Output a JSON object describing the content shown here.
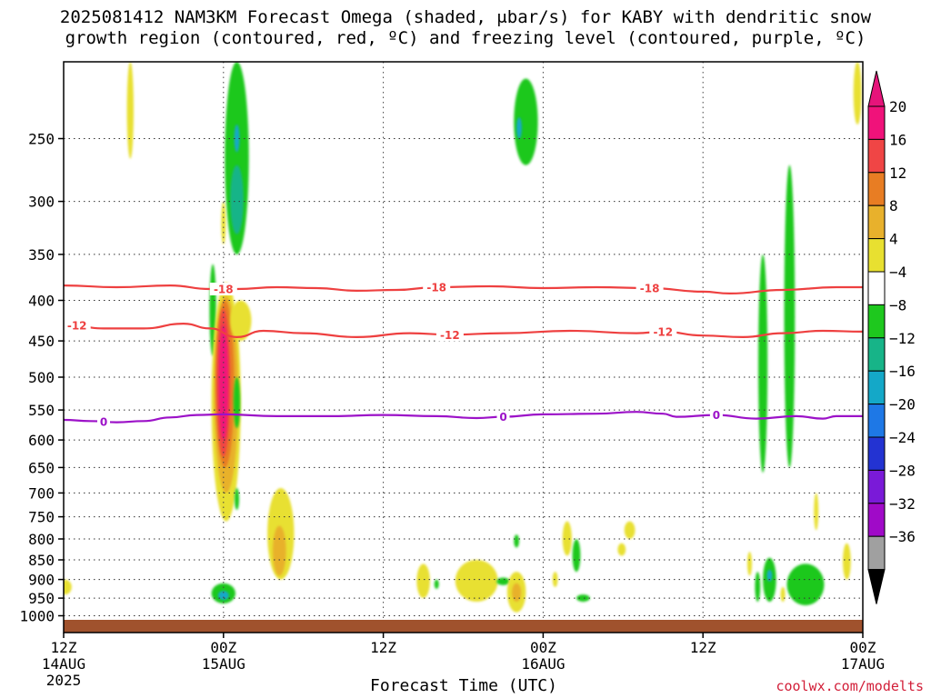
{
  "title_line1": "2025081412 NAM3KM Forecast Omega (shaded, μbar/s) for KABY with dendritic snow",
  "title_line2": "growth region (contoured, red, ºC) and freezing level (contoured, purple, ºC)",
  "xlabel": "Forecast Time (UTC)",
  "credit": "coolwx.com/modelts",
  "chart_data": {
    "type": "heatmap",
    "title": "2025081412 NAM3KM Forecast Omega (shaded, μbar/s) for KABY with dendritic snow growth region (contoured, red, ºC) and freezing level (contoured, purple, ºC)",
    "xlabel": "Forecast Time (UTC)",
    "ylabel": "",
    "x_range_hours": [
      0,
      60
    ],
    "y_range_hPa": [
      1050,
      200
    ],
    "y_scale": "log-pressure",
    "y_ticks": [
      250,
      300,
      350,
      400,
      450,
      500,
      550,
      600,
      650,
      700,
      750,
      800,
      850,
      900,
      950,
      1000
    ],
    "x_ticks": [
      {
        "hour": 0,
        "label": "12Z",
        "sub": "14AUG",
        "sub2": "2025"
      },
      {
        "hour": 12,
        "label": "00Z",
        "sub": "15AUG",
        "sub2": ""
      },
      {
        "hour": 24,
        "label": "12Z",
        "sub": "",
        "sub2": ""
      },
      {
        "hour": 36,
        "label": "00Z",
        "sub": "16AUG",
        "sub2": ""
      },
      {
        "hour": 48,
        "label": "12Z",
        "sub": "",
        "sub2": ""
      },
      {
        "hour": 60,
        "label": "00Z",
        "sub": "17AUG",
        "sub2": ""
      }
    ],
    "grid": true,
    "colorbar": {
      "labels": [
        "20",
        "16",
        "12",
        "8",
        "4",
        "−4",
        "−8",
        "−12",
        "−16",
        "−20",
        "−24",
        "−28",
        "−32",
        "−36"
      ],
      "colors": [
        "#f0127a",
        "#f04545",
        "#e87d23",
        "#e8b12c",
        "#e8e030",
        "#ffffff",
        "#1ec81e",
        "#17b488",
        "#14a8c8",
        "#1e78e6",
        "#2333d2",
        "#7a1ad8",
        "#a00ac8",
        "#a0a0a0"
      ],
      "top_arrow_color": "#e6147a",
      "bottom_arrow_color": "#000000"
    },
    "isotherms": [
      {
        "name": "-18",
        "color": "#ee4040",
        "labels_at_hours": [
          12,
          28,
          44
        ],
        "points": [
          [
            0,
            383
          ],
          [
            4,
            385
          ],
          [
            8,
            383
          ],
          [
            11,
            387
          ],
          [
            13,
            387
          ],
          [
            16,
            385
          ],
          [
            19,
            386
          ],
          [
            22,
            389
          ],
          [
            25,
            388
          ],
          [
            28,
            385
          ],
          [
            32,
            384
          ],
          [
            36,
            386
          ],
          [
            40,
            385
          ],
          [
            44,
            386
          ],
          [
            48,
            390
          ],
          [
            50,
            392
          ],
          [
            54,
            388
          ],
          [
            58,
            385
          ],
          [
            60,
            385
          ]
        ]
      },
      {
        "name": "-12",
        "color": "#ee4040",
        "labels_at_hours": [
          1,
          29,
          45
        ],
        "points": [
          [
            0,
            428
          ],
          [
            3,
            434
          ],
          [
            6,
            434
          ],
          [
            9,
            428
          ],
          [
            11,
            434
          ],
          [
            13,
            445
          ],
          [
            15,
            437
          ],
          [
            18,
            440
          ],
          [
            22,
            445
          ],
          [
            26,
            440
          ],
          [
            29,
            442
          ],
          [
            33,
            440
          ],
          [
            38,
            437
          ],
          [
            43,
            440
          ],
          [
            45,
            438
          ],
          [
            48,
            443
          ],
          [
            51,
            445
          ],
          [
            54,
            440
          ],
          [
            57,
            437
          ],
          [
            60,
            438
          ]
        ]
      },
      {
        "name": "0",
        "color": "#9c12c8",
        "labels_at_hours": [
          3,
          33,
          49
        ],
        "points": [
          [
            0,
            566
          ],
          [
            2,
            568
          ],
          [
            4,
            570
          ],
          [
            6,
            568
          ],
          [
            8,
            562
          ],
          [
            10,
            558
          ],
          [
            12,
            557
          ],
          [
            16,
            560
          ],
          [
            20,
            560
          ],
          [
            24,
            558
          ],
          [
            28,
            560
          ],
          [
            31,
            563
          ],
          [
            33,
            561
          ],
          [
            36,
            557
          ],
          [
            40,
            556
          ],
          [
            43,
            553
          ],
          [
            45,
            556
          ],
          [
            46,
            561
          ],
          [
            49,
            558
          ],
          [
            52,
            564
          ],
          [
            55,
            560
          ],
          [
            57,
            564
          ],
          [
            58,
            560
          ],
          [
            60,
            560
          ]
        ]
      }
    ],
    "terrain_hPa": 1012,
    "terrain_color": "#a0522d",
    "omega_cells": [
      {
        "h": 5.0,
        "p": 230,
        "dh": 0.25,
        "top": 200,
        "bot": 265,
        "v": 5
      },
      {
        "h": 13.0,
        "p": 240,
        "dh": 0.9,
        "top": 200,
        "bot": 350,
        "v": -6
      },
      {
        "h": 13.0,
        "p": 300,
        "dh": 0.5,
        "top": 270,
        "bot": 330,
        "v": -10
      },
      {
        "h": 13.0,
        "p": 250,
        "dh": 0.2,
        "top": 240,
        "bot": 260,
        "v": -13
      },
      {
        "h": 34.7,
        "p": 240,
        "dh": 0.9,
        "top": 210,
        "bot": 270,
        "v": -6
      },
      {
        "h": 34.2,
        "p": 240,
        "dh": 0.2,
        "top": 235,
        "bot": 250,
        "v": -13
      },
      {
        "h": 59.6,
        "p": 220,
        "dh": 0.3,
        "top": 200,
        "bot": 240,
        "v": 5
      },
      {
        "h": 12.0,
        "p": 320,
        "dh": 0.1,
        "top": 300,
        "bot": 340,
        "v": 5
      },
      {
        "h": 11.2,
        "p": 410,
        "dh": 0.25,
        "top": 360,
        "bot": 470,
        "v": -6
      },
      {
        "h": 12.2,
        "p": 500,
        "dh": 1.1,
        "top": 380,
        "bot": 760,
        "v": 6
      },
      {
        "h": 12.2,
        "p": 500,
        "dh": 0.9,
        "top": 395,
        "bot": 700,
        "v": 10
      },
      {
        "h": 12.1,
        "p": 500,
        "dh": 0.7,
        "top": 400,
        "bot": 650,
        "v": 14
      },
      {
        "h": 12.0,
        "p": 500,
        "dh": 0.5,
        "top": 410,
        "bot": 630,
        "v": 18
      },
      {
        "h": 12.0,
        "p": 500,
        "dh": 0.35,
        "top": 430,
        "bot": 600,
        "v": 22
      },
      {
        "h": 13.0,
        "p": 540,
        "dh": 0.25,
        "top": 500,
        "bot": 580,
        "v": -6
      },
      {
        "h": 13.3,
        "p": 420,
        "dh": 0.8,
        "top": 400,
        "bot": 450,
        "v": 5
      },
      {
        "h": 13.0,
        "p": 700,
        "dh": 0.12,
        "top": 690,
        "bot": 735,
        "v": -6
      },
      {
        "h": 12.0,
        "p": 940,
        "dh": 0.9,
        "top": 910,
        "bot": 965,
        "v": -6
      },
      {
        "h": 12.0,
        "p": 940,
        "dh": 0.4,
        "top": 930,
        "bot": 955,
        "v": -12
      },
      {
        "h": 16.3,
        "p": 800,
        "dh": 1.0,
        "top": 690,
        "bot": 900,
        "v": 5
      },
      {
        "h": 16.2,
        "p": 840,
        "dh": 0.5,
        "top": 770,
        "bot": 890,
        "v": 9
      },
      {
        "h": 0.1,
        "p": 920,
        "dh": 0.5,
        "top": 900,
        "bot": 940,
        "v": 5
      },
      {
        "h": 27.0,
        "p": 900,
        "dh": 0.5,
        "top": 860,
        "bot": 950,
        "v": 5
      },
      {
        "h": 28.0,
        "p": 910,
        "dh": 0.15,
        "top": 900,
        "bot": 925,
        "v": -6
      },
      {
        "h": 31.0,
        "p": 900,
        "dh": 1.6,
        "top": 850,
        "bot": 960,
        "v": 5
      },
      {
        "h": 33.0,
        "p": 910,
        "dh": 0.5,
        "top": 895,
        "bot": 915,
        "v": -6
      },
      {
        "h": 34.0,
        "p": 930,
        "dh": 0.7,
        "top": 880,
        "bot": 990,
        "v": 6
      },
      {
        "h": 34.0,
        "p": 930,
        "dh": 0.35,
        "top": 910,
        "bot": 960,
        "v": 10
      },
      {
        "h": 34.0,
        "p": 800,
        "dh": 0.2,
        "top": 790,
        "bot": 820,
        "v": -6
      },
      {
        "h": 36.9,
        "p": 900,
        "dh": 0.2,
        "top": 880,
        "bot": 920,
        "v": 5
      },
      {
        "h": 37.8,
        "p": 800,
        "dh": 0.35,
        "top": 760,
        "bot": 840,
        "v": 5
      },
      {
        "h": 38.5,
        "p": 840,
        "dh": 0.3,
        "top": 800,
        "bot": 880,
        "v": -6
      },
      {
        "h": 39.0,
        "p": 950,
        "dh": 0.5,
        "top": 940,
        "bot": 960,
        "v": -6
      },
      {
        "h": 41.9,
        "p": 820,
        "dh": 0.3,
        "top": 810,
        "bot": 840,
        "v": 5
      },
      {
        "h": 42.5,
        "p": 780,
        "dh": 0.4,
        "top": 760,
        "bot": 800,
        "v": 5
      },
      {
        "h": 52.5,
        "p": 480,
        "dh": 0.35,
        "top": 350,
        "bot": 660,
        "v": -6
      },
      {
        "h": 54.5,
        "p": 420,
        "dh": 0.4,
        "top": 270,
        "bot": 650,
        "v": -6
      },
      {
        "h": 51.5,
        "p": 860,
        "dh": 0.15,
        "top": 830,
        "bot": 890,
        "v": 5
      },
      {
        "h": 52.1,
        "p": 920,
        "dh": 0.2,
        "top": 880,
        "bot": 960,
        "v": -6
      },
      {
        "h": 53.0,
        "p": 900,
        "dh": 0.5,
        "top": 845,
        "bot": 960,
        "v": -6
      },
      {
        "h": 53.0,
        "p": 890,
        "dh": 0.2,
        "top": 875,
        "bot": 905,
        "v": -12
      },
      {
        "h": 54.0,
        "p": 940,
        "dh": 0.12,
        "top": 920,
        "bot": 960,
        "v": 5
      },
      {
        "h": 55.7,
        "p": 920,
        "dh": 1.4,
        "top": 860,
        "bot": 970,
        "v": -6
      },
      {
        "h": 56.5,
        "p": 745,
        "dh": 0.15,
        "top": 700,
        "bot": 780,
        "v": 5
      },
      {
        "h": 58.8,
        "p": 860,
        "dh": 0.3,
        "top": 810,
        "bot": 900,
        "v": 5
      }
    ]
  }
}
